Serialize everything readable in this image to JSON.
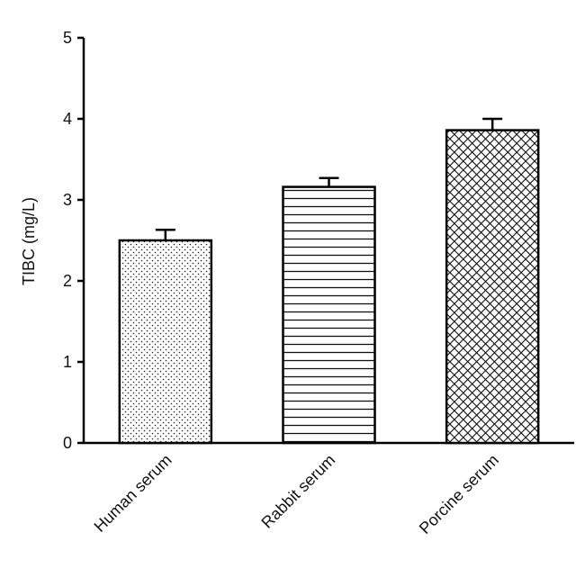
{
  "chart_data": {
    "type": "bar",
    "ylabel": "TIBC (mg/L)",
    "xlabel": "",
    "ylim": [
      0,
      5
    ],
    "yticks": [
      0,
      1,
      2,
      3,
      4,
      5
    ],
    "categories": [
      "Human serum",
      "Rabbit serum",
      "Porcine serum"
    ],
    "values": [
      2.5,
      3.16,
      3.86
    ],
    "errors": [
      0.13,
      0.11,
      0.14
    ],
    "patterns": [
      "dots",
      "horizontal-lines",
      "crosshatch"
    ],
    "grid": false,
    "legend": "none"
  }
}
